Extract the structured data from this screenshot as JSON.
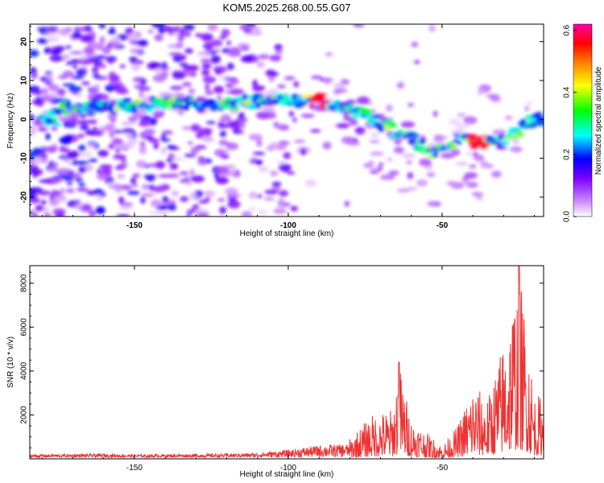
{
  "chart_data": [
    {
      "type": "heatmap",
      "title": "KOM5.2025.268.00.55.G07",
      "xlabel": "Height of straight line (km)",
      "ylabel": "Frequency (Hz)",
      "xlim": [
        -184,
        -17
      ],
      "ylim": [
        -25,
        24.5
      ],
      "xticks": [
        -150,
        -100,
        -50
      ],
      "yticks": [
        -20,
        -10,
        0,
        10,
        20
      ],
      "colorbar": {
        "label": "Normalized spectral amplitude",
        "range": [
          0.0,
          0.62
        ],
        "ticks": [
          "0.0",
          "0.2",
          "0.4",
          "0.6"
        ],
        "tick_values": [
          0.0,
          0.2,
          0.4,
          0.6
        ],
        "colormap": [
          "#ffffff",
          "#cc88ff",
          "#7a00ff",
          "#0000ff",
          "#00ffff",
          "#00ff00",
          "#ffff00",
          "#ff8000",
          "#ff0000",
          "#ff00aa"
        ]
      },
      "ridge": {
        "description_points": [
          {
            "x": -175,
            "y": 3
          },
          {
            "x": -160,
            "y": 3
          },
          {
            "x": -140,
            "y": 4
          },
          {
            "x": -120,
            "y": 4
          },
          {
            "x": -100,
            "y": 5
          },
          {
            "x": -90,
            "y": 5
          },
          {
            "x": -80,
            "y": 3
          },
          {
            "x": -72,
            "y": 0
          },
          {
            "x": -65,
            "y": -3
          },
          {
            "x": -58,
            "y": -6
          },
          {
            "x": -52,
            "y": -9
          },
          {
            "x": -45,
            "y": -5
          },
          {
            "x": -38,
            "y": -6
          },
          {
            "x": -30,
            "y": -6
          },
          {
            "x": -22,
            "y": -1
          },
          {
            "x": -18,
            "y": 0
          }
        ],
        "peak_amplitude": 0.6
      }
    },
    {
      "type": "line",
      "title": "",
      "xlabel": "Height of straight line (km)",
      "ylabel": "SNR (10 * v/v)",
      "xlim": [
        -184,
        -17
      ],
      "ylim": [
        0,
        8800
      ],
      "xticks": [
        -150,
        -100,
        -50
      ],
      "yticks": [
        2000,
        4000,
        6000,
        8000
      ],
      "series": [
        {
          "name": "SNR",
          "color": "#ee3333",
          "envelope": [
            {
              "x": -184,
              "y": 200
            },
            {
              "x": -160,
              "y": 250
            },
            {
              "x": -150,
              "y": 200
            },
            {
              "x": -120,
              "y": 250
            },
            {
              "x": -110,
              "y": 300
            },
            {
              "x": -100,
              "y": 500
            },
            {
              "x": -90,
              "y": 800
            },
            {
              "x": -80,
              "y": 900
            },
            {
              "x": -73,
              "y": 2000
            },
            {
              "x": -66,
              "y": 2300
            },
            {
              "x": -64,
              "y": 4400
            },
            {
              "x": -60,
              "y": 1800
            },
            {
              "x": -55,
              "y": 1200
            },
            {
              "x": -50,
              "y": 600
            },
            {
              "x": -45,
              "y": 1500
            },
            {
              "x": -40,
              "y": 3400
            },
            {
              "x": -35,
              "y": 2800
            },
            {
              "x": -29,
              "y": 6000
            },
            {
              "x": -25,
              "y": 8800
            },
            {
              "x": -22,
              "y": 5600
            },
            {
              "x": -20,
              "y": 3000
            },
            {
              "x": -17,
              "y": 2800
            }
          ]
        }
      ]
    }
  ]
}
